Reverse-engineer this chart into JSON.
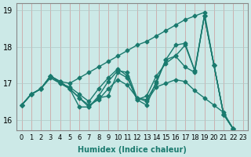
{
  "xlabel": "Humidex (Indice chaleur)",
  "xlim": [
    -0.5,
    23.5
  ],
  "ylim": [
    15.7,
    19.2
  ],
  "yticks": [
    16,
    17,
    18,
    19
  ],
  "xticks": [
    0,
    1,
    2,
    3,
    4,
    5,
    6,
    7,
    8,
    9,
    10,
    11,
    12,
    13,
    14,
    15,
    16,
    17,
    18,
    19,
    20,
    21,
    22,
    23
  ],
  "bg_color": "#cce9e7",
  "line_color": "#1a7a6e",
  "grid_color": "#b0c8c6",
  "lines": [
    [
      16.4,
      16.7,
      16.85,
      17.2,
      17.05,
      17.0,
      17.15,
      17.3,
      17.45,
      17.6,
      17.75,
      17.9,
      18.05,
      18.15,
      18.3,
      18.45,
      18.6,
      18.75,
      18.85,
      18.95,
      17.5,
      16.15,
      15.75
    ],
    [
      16.4,
      16.7,
      16.85,
      17.2,
      17.0,
      16.9,
      16.7,
      16.5,
      16.85,
      17.15,
      17.4,
      17.2,
      16.55,
      16.65,
      17.2,
      17.55,
      17.75,
      17.45,
      17.3,
      18.85,
      17.5,
      16.15,
      15.75
    ],
    [
      16.4,
      16.7,
      16.85,
      17.2,
      17.05,
      16.85,
      16.35,
      16.35,
      16.6,
      16.65,
      17.3,
      17.15,
      16.55,
      16.4,
      17.05,
      17.65,
      17.75,
      18.05,
      17.35,
      18.85,
      17.5,
      16.15,
      15.75
    ],
    [
      16.4,
      16.7,
      16.85,
      17.2,
      17.05,
      16.85,
      16.6,
      16.35,
      16.65,
      17.05,
      17.35,
      17.3,
      16.6,
      16.55,
      17.0,
      17.65,
      18.05,
      18.1,
      17.35,
      18.85,
      17.5,
      16.15,
      15.75
    ],
    [
      16.4,
      16.7,
      16.85,
      17.15,
      17.0,
      16.85,
      16.6,
      16.4,
      16.55,
      16.85,
      17.1,
      16.95,
      16.6,
      16.5,
      16.9,
      17.0,
      17.1,
      17.05,
      16.8,
      16.6,
      16.4,
      16.2,
      15.75
    ]
  ],
  "line_styles": [
    {
      "lw": 1.0,
      "marker": "D",
      "ms": 2.5
    },
    {
      "lw": 1.0,
      "marker": "D",
      "ms": 2.5
    },
    {
      "lw": 1.0,
      "marker": "D",
      "ms": 2.5
    },
    {
      "lw": 1.0,
      "marker": "D",
      "ms": 2.5
    },
    {
      "lw": 1.0,
      "marker": "D",
      "ms": 2.5
    }
  ]
}
